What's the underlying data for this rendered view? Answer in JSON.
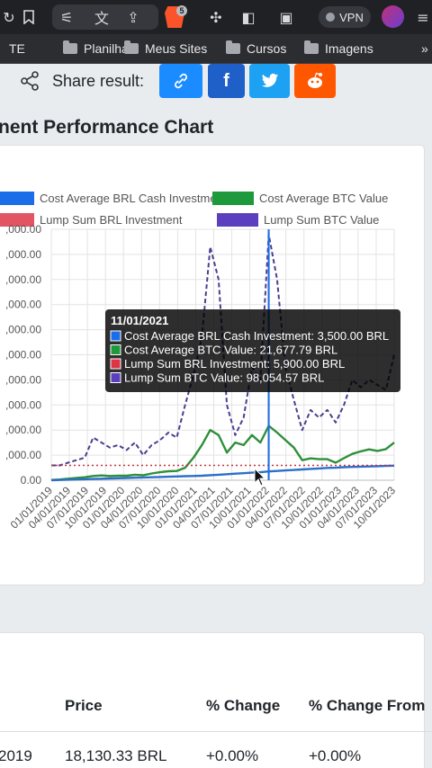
{
  "browser": {
    "brave_badge": "5",
    "vpn_label": "VPN",
    "bookmarks": [
      "TE",
      "Planilha",
      "Meus Sites",
      "Cursos",
      "Imagens"
    ]
  },
  "share": {
    "label": "Share result:",
    "buttons": [
      {
        "name": "copy-link",
        "color": "#1a8cff",
        "icon": "link-icon"
      },
      {
        "name": "facebook",
        "color": "#1f5fc8",
        "icon": "facebook-icon"
      },
      {
        "name": "twitter",
        "color": "#1da1f2",
        "icon": "twitter-icon"
      },
      {
        "name": "reddit",
        "color": "#ff5700",
        "icon": "reddit-icon"
      }
    ]
  },
  "section_title": "nent Performance Chart",
  "chart_data": {
    "type": "line",
    "legend": [
      {
        "label": "Cost Average BRL Cash Investment",
        "color": "#1c6ee8"
      },
      {
        "label": "Cost Average BTC Value",
        "color": "#1e9a3c"
      },
      {
        "label": "Lump Sum BRL Investment",
        "color": "#dc3545"
      },
      {
        "label": "Lump Sum BTC Value",
        "color": "#5b3fbf"
      }
    ],
    "y_tick_labels": [
      ",000.00",
      ",000.00",
      ",000.00",
      ",000.00",
      ",000.00",
      ",000.00",
      ",000.00",
      ",000.00",
      ",000.00",
      ",000.00",
      "0.00"
    ],
    "x_tick_labels": [
      "01/01/2019",
      "04/01/2019",
      "07/01/2019",
      "10/01/2019",
      "01/01/2020",
      "04/01/2020",
      "07/01/2020",
      "10/01/2020",
      "01/01/2021",
      "04/01/2021",
      "07/01/2021",
      "10/01/2021",
      "01/01/2022",
      "04/01/2022",
      "07/01/2022",
      "10/01/2022",
      "01/01/2023",
      "04/01/2023",
      "07/01/2023",
      "10/01/2023"
    ],
    "ylim": [
      0,
      100000
    ],
    "series": [
      {
        "name": "Lump Sum BTC Value",
        "values": [
          5900,
          5900,
          7000,
          8000,
          9000,
          17000,
          15000,
          13000,
          14000,
          12000,
          15000,
          10000,
          14000,
          16000,
          19000,
          17000,
          30000,
          42000,
          57000,
          93000,
          80000,
          30000,
          18000,
          25000,
          45000,
          40000,
          98000,
          80000,
          45000,
          32000,
          20000,
          28000,
          25000,
          28000,
          23000,
          30000,
          40000,
          37000,
          40000,
          38000,
          36000,
          50000
        ]
      },
      {
        "name": "Cost Average BTC Value",
        "values": [
          100,
          300,
          600,
          900,
          1200,
          1700,
          1900,
          1700,
          1800,
          1800,
          2200,
          2000,
          2700,
          3200,
          3600,
          3700,
          5000,
          9000,
          14000,
          20000,
          18000,
          11000,
          15000,
          14000,
          18000,
          15000,
          21700,
          19000,
          16000,
          13000,
          8000,
          8700,
          8400,
          8400,
          7000,
          8800,
          10500,
          11500,
          12300,
          11700,
          12400,
          15000
        ]
      },
      {
        "name": "Cost Average BRL Cash Investment",
        "values": [
          0,
          100,
          200,
          300,
          400,
          500,
          600,
          700,
          800,
          900,
          1000,
          1100,
          1200,
          1300,
          1400,
          1500,
          1600,
          1700,
          1800,
          2000,
          2200,
          2400,
          2600,
          2800,
          3000,
          3200,
          3500,
          3700,
          3900,
          4100,
          4300,
          4500,
          4700,
          4900,
          5000,
          5200,
          5300,
          5400,
          5500,
          5600,
          5700,
          5800
        ]
      },
      {
        "name": "Lump Sum BRL Investment",
        "values": [
          5900,
          5900,
          5900,
          5900,
          5900,
          5900,
          5900,
          5900,
          5900,
          5900,
          5900,
          5900,
          5900,
          5900,
          5900,
          5900,
          5900,
          5900,
          5900,
          5900,
          5900,
          5900,
          5900,
          5900,
          5900,
          5900,
          5900,
          5900,
          5900,
          5900,
          5900,
          5900,
          5900,
          5900,
          5900,
          5900,
          5900,
          5900,
          5900,
          5900,
          5900,
          5900
        ]
      }
    ],
    "hover_index": 26,
    "tooltip": {
      "title": "11/01/2021",
      "lines": [
        {
          "text": "Cost Average BRL Cash Investment: 3,500.00 BRL",
          "color": "#1c6ee8"
        },
        {
          "text": "Cost Average BTC Value: 21,677.79 BRL",
          "color": "#1e9a3c"
        },
        {
          "text": "Lump Sum BRL Investment: 5,900.00 BRL",
          "color": "#dc3545"
        },
        {
          "text": "Lump Sum BTC Value: 98,054.57 BRL",
          "color": "#5b3fbf"
        }
      ]
    }
  },
  "table": {
    "headers": [
      "Price",
      "% Change",
      "% Change From"
    ],
    "row": {
      "date": "2019",
      "price": "18,130.33 BRL",
      "change": "+0.00%",
      "change_from": "+0.00%"
    }
  }
}
